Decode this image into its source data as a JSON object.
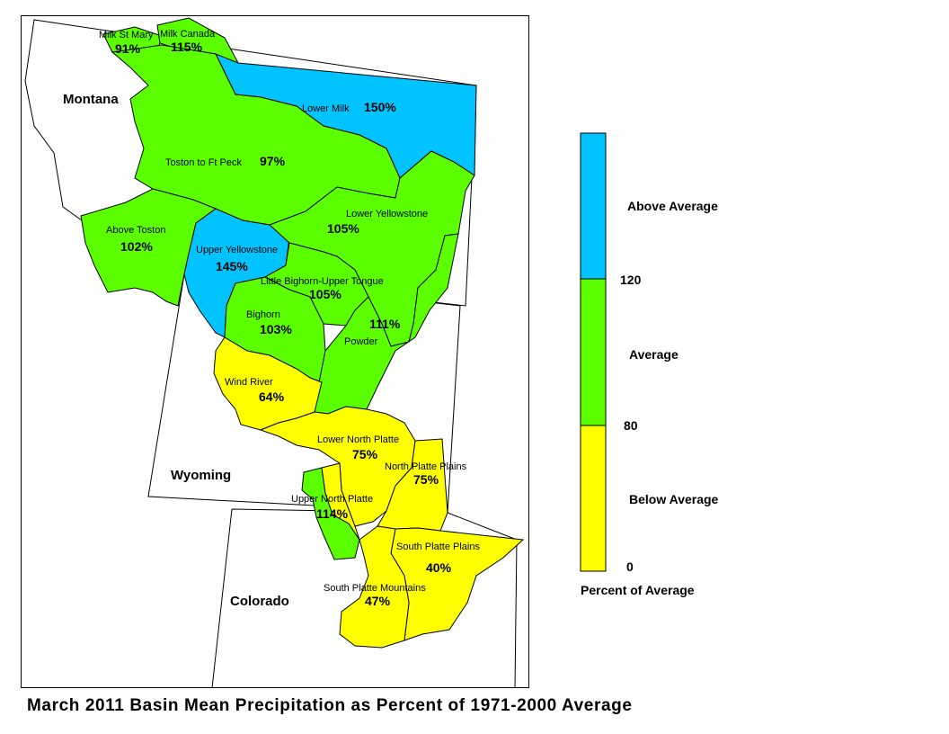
{
  "title": "March 2011 Basin Mean Precipitation as Percent of 1971-2000 Average",
  "colors": {
    "above": "#00c3ff",
    "average": "#5cff00",
    "below": "#ffff00"
  },
  "states": {
    "montana": "Montana",
    "wyoming": "Wyoming",
    "colorado": "Colorado"
  },
  "basins": {
    "milk_st_mary": {
      "name": "Milk St Mary",
      "value": "91%",
      "category": "average"
    },
    "milk_canada": {
      "name": "Milk Canada",
      "value": "115%",
      "category": "average"
    },
    "lower_milk": {
      "name": "Lower Milk",
      "value": "150%",
      "category": "above"
    },
    "toston_ft_peck": {
      "name": "Toston to Ft Peck",
      "value": "97%",
      "category": "average"
    },
    "above_toston": {
      "name": "Above Toston",
      "value": "102%",
      "category": "average"
    },
    "upper_yellowstone": {
      "name": "Upper Yellowstone",
      "value": "145%",
      "category": "above"
    },
    "lower_yellowstone": {
      "name": "Lower Yellowstone",
      "value": "105%",
      "category": "average"
    },
    "little_bighorn": {
      "name": "Little Bighorn-Upper Tongue",
      "value": "105%",
      "category": "average"
    },
    "bighorn": {
      "name": "Bighorn",
      "value": "103%",
      "category": "average"
    },
    "powder": {
      "name": "Powder",
      "value": "111%",
      "category": "average"
    },
    "wind_river": {
      "name": "Wind River",
      "value": "64%",
      "category": "below"
    },
    "lower_north_platte": {
      "name": "Lower North Platte",
      "value": "75%",
      "category": "below"
    },
    "north_platte_plains": {
      "name": "North Platte Plains",
      "value": "75%",
      "category": "below"
    },
    "upper_north_platte": {
      "name": "Upper North Platte",
      "value": "114%",
      "category": "average"
    },
    "south_platte_plains": {
      "name": "South Platte Plains",
      "value": "40%",
      "category": "below"
    },
    "south_platte_mountains": {
      "name": "South Platte Mountains",
      "value": "47%",
      "category": "below"
    }
  },
  "legend": {
    "above_label": "Above Average",
    "average_label": "Average",
    "below_label": "Below Average",
    "tick_120": "120",
    "tick_80": "80",
    "tick_0": "0",
    "caption": "Percent of Average"
  }
}
